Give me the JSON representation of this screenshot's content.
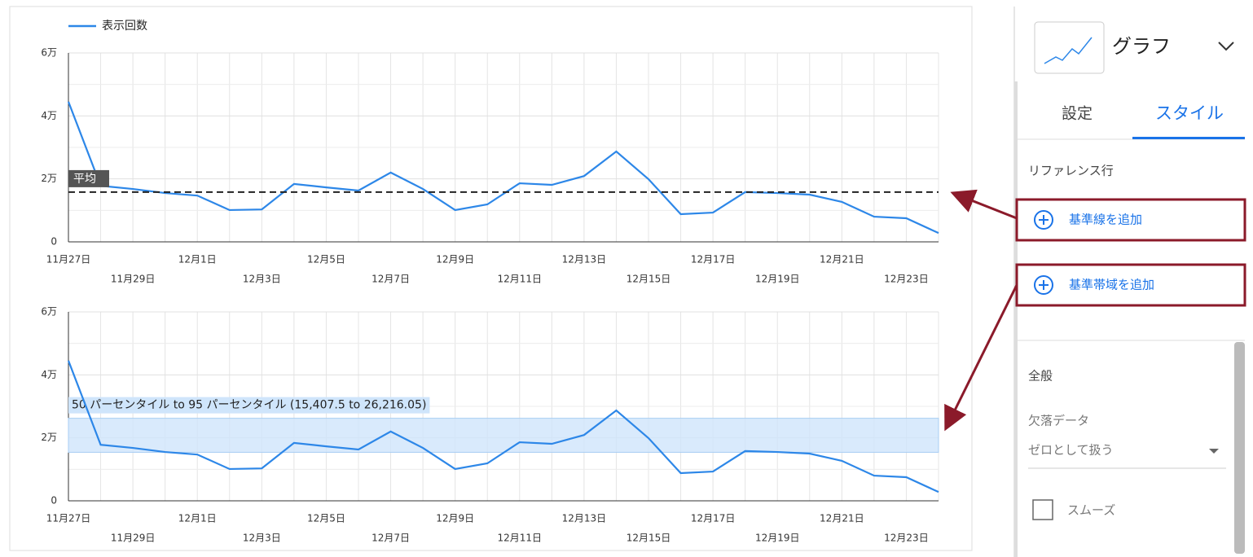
{
  "chart_data": [
    {
      "type": "line",
      "categories": [
        "11月27日",
        null,
        "11月29日",
        null,
        "12月1日",
        null,
        "12月3日",
        null,
        "12月5日",
        null,
        "12月7日",
        null,
        "12月9日",
        null,
        "12月11日",
        null,
        "12月13日",
        null,
        "12月15日",
        null,
        "12月17日",
        null,
        "12月19日",
        null,
        "12月21日",
        null,
        "12月23日",
        null
      ],
      "series": [
        {
          "name": "表示回数",
          "color": "#2d87e8",
          "values": [
            44500,
            17800,
            16800,
            15500,
            14700,
            10100,
            10300,
            18400,
            17300,
            16300,
            22000,
            16800,
            10100,
            11900,
            18600,
            18100,
            20900,
            28700,
            19900,
            8800,
            9300,
            15800,
            15500,
            15000,
            12700,
            8000,
            7500,
            2800
          ]
        }
      ],
      "ylim": [
        0,
        60000
      ],
      "yticks": [
        0,
        {
          "value": 20000,
          "label": "2万"
        },
        {
          "value": 40000,
          "label": "4万"
        },
        {
          "value": 60000,
          "label": "6万"
        }
      ],
      "y_minor_gridlines": [
        10000,
        30000,
        50000
      ],
      "grid": true,
      "legend": "top-left",
      "reference_line": {
        "label": "平均",
        "value": 15800,
        "color": "#222222"
      }
    },
    {
      "type": "line",
      "categories": [
        "11月27日",
        null,
        "11月29日",
        null,
        "12月1日",
        null,
        "12月3日",
        null,
        "12月5日",
        null,
        "12月7日",
        null,
        "12月9日",
        null,
        "12月11日",
        null,
        "12月13日",
        null,
        "12月15日",
        null,
        "12月17日",
        null,
        "12月19日",
        null,
        "12月21日",
        null,
        "12月23日",
        null
      ],
      "series": [
        {
          "name": "表示回数",
          "color": "#2d87e8",
          "values": [
            44500,
            17800,
            16800,
            15500,
            14700,
            10100,
            10300,
            18400,
            17300,
            16300,
            22000,
            16800,
            10100,
            11900,
            18600,
            18100,
            20900,
            28700,
            19900,
            8800,
            9300,
            15800,
            15500,
            15000,
            12700,
            8000,
            7500,
            2800
          ]
        }
      ],
      "ylim": [
        0,
        60000
      ],
      "yticks": [
        0,
        {
          "value": 20000,
          "label": "2万"
        },
        {
          "value": 40000,
          "label": "4万"
        },
        {
          "value": 60000,
          "label": "6万"
        }
      ],
      "y_minor_gridlines": [
        10000,
        30000,
        50000
      ],
      "grid": true,
      "reference_band": {
        "label": "50 パーセンタイル to 95 パーセンタイル (15,407.5 to 26,216.05)",
        "from": 15407.5,
        "to": 26216.05,
        "color": "#cfe5fb"
      }
    }
  ],
  "panel": {
    "chart_type": "グラフ",
    "tabs": [
      "設定",
      "スタイル"
    ],
    "section": "リファレンス行",
    "buttons": [
      "基準線を追加",
      "基準帯域を追加"
    ],
    "general": "全般",
    "missing_data": "欠落データ",
    "missing_option": "ゼロとして扱う",
    "smooth": "スムーズ"
  }
}
